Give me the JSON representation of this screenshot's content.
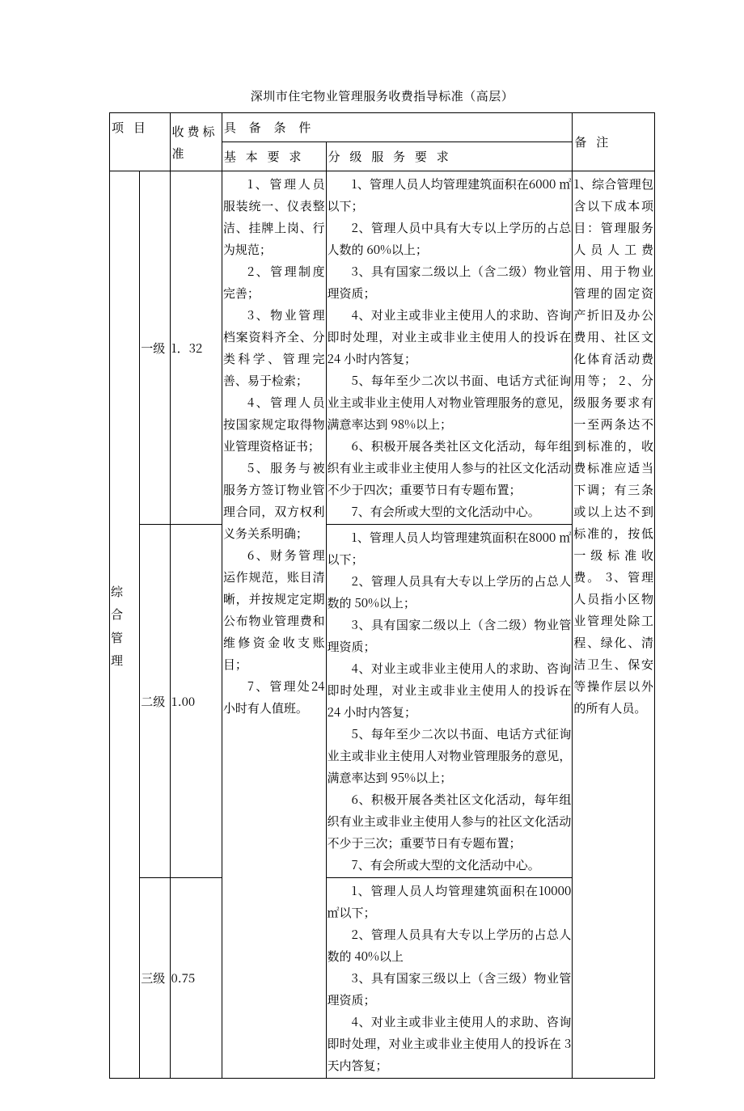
{
  "caption": "深圳市住宅物业管理服务收费指导标准（高层）",
  "headers": {
    "project": "项 目",
    "fee": "收费标准",
    "conditions": "具 备 条 件",
    "basic": "基 本 要 求",
    "graded": "分 级 服 务 要 求",
    "notes": "备 注"
  },
  "project": {
    "name_chars": [
      "综",
      "合",
      "管",
      "理"
    ]
  },
  "levels": [
    {
      "level": "一级",
      "fee": "1．32"
    },
    {
      "level": "二级",
      "fee": "1.00"
    },
    {
      "level": "三级",
      "fee": "0.75"
    }
  ],
  "basic_req": [
    "1、管理人员服装统一、仪表整洁、挂牌上岗、行为规范；",
    "2、管理制度完善；",
    "3、物业管理档案资料齐全、分类科学、管理完善、易于检索；",
    "4、管理人员按国家规定取得物业管理资格证书；",
    "5、服务与被服务方签订物业管理合同，双方权利义务关系明确；",
    "6、财务管理运作规范，账目清晰，并按规定定期公布物业管理费和维修资金收支账目；",
    "7、管理处24 小时有人值班。"
  ],
  "graded_req": {
    "lvl1": [
      "1、管理人员人均管理建筑面积在6000 ㎡以下；",
      "2、管理人员中具有大专以上学历的占总人数的 60%以上；",
      "3、具有国家二级以上（含二级）物业管理资质；",
      "4、对业主或非业主使用人的求助、咨询即时处理，对业主或非业主使用人的投诉在 24 小时内答复；",
      "5、每年至少二次以书面、电话方式征询业主或非业主使用人对物业管理服务的意见，满意率达到 98%以上；",
      "6、积极开展各类社区文化活动，每年组织有业主或非业主使用人参与的社区文化活动不少于四次；重要节日有专题布置；",
      "7、有会所或大型的文化活动中心。"
    ],
    "lvl2": [
      "1、管理人员人均管理建筑面积在8000 ㎡以下；",
      "2、管理人员具有大专以上学历的占总人数的 50%以上；",
      "3、具有国家二级以上（含二级）物业管理资质；",
      "4、对业主或非业主使用人的求助、咨询即时处理，对业主或非业主使用人的投诉在 24 小时内答复；",
      "5、每年至少二次以书面、电话方式征询业主或非业主使用人对物业管理服务的意见，满意率达到 95%以上；",
      "6、积极开展各类社区文化活动，每年组织有业主或非业主使用人参与的社区文化活动不少于三次；重要节日有专题布置；",
      "7、有会所或大型的文化活动中心。"
    ],
    "lvl3": [
      "1、管理人员人均管理建筑面积在10000 ㎡以下；",
      "2、管理人员具有大专以上学历的占总人数的 40%以上",
      "3、具有国家三级以上（含三级）物业管理资质；",
      "4、对业主或非业主使用人的求助、咨询即时处理，对业主或非业主使用人的投诉在 3 天内答复；"
    ]
  },
  "notes": [
    "1、综合管理包含以下成本项目：管理服务人员人工费用、用于物业管理的固定资产折旧及办公费用、社区文化体育活动费用等；",
    "2、分级服务要求有一至两条达不到标准的，收费标准应适当下调；有三条或以上达不到标准的，按低一级标准收费。",
    "3、管理人员指小区物业管理处除工程、绿化、清洁卫生、保安等操作层以外的所有人员。"
  ]
}
